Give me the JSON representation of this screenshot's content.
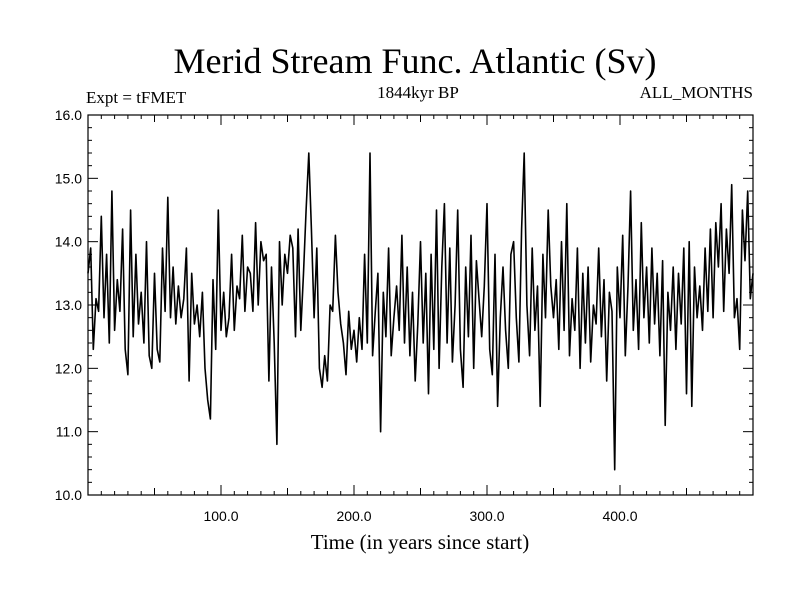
{
  "chart_data": {
    "type": "line",
    "title": "Merid Stream Func. Atlantic (Sv)",
    "subtitle_left": "Expt = tFMET",
    "subtitle_center": "1844kyr BP",
    "subtitle_right": "ALL_MONTHS",
    "xlabel": "Time (in years since start)",
    "ylabel": "",
    "xlim": [
      0,
      500
    ],
    "ylim": [
      10.0,
      16.0
    ],
    "xticks": [
      100,
      200,
      300,
      400
    ],
    "xtick_labels": [
      "100.0",
      "200.0",
      "300.0",
      "400.0"
    ],
    "yticks": [
      10,
      11,
      12,
      13,
      14,
      15,
      16
    ],
    "ytick_labels": [
      "10.0",
      "11.0",
      "12.0",
      "13.0",
      "14.0",
      "15.0",
      "16.0"
    ],
    "grid": false,
    "series": [
      {
        "name": "Merid Stream Func. Atlantic",
        "color": "#000000",
        "points": [
          [
            0,
            13.5
          ],
          [
            2,
            13.9
          ],
          [
            4,
            12.3
          ],
          [
            6,
            13.1
          ],
          [
            8,
            12.9
          ],
          [
            10,
            14.4
          ],
          [
            12,
            12.8
          ],
          [
            14,
            13.8
          ],
          [
            16,
            12.4
          ],
          [
            18,
            14.8
          ],
          [
            20,
            12.6
          ],
          [
            22,
            13.4
          ],
          [
            24,
            12.9
          ],
          [
            26,
            14.2
          ],
          [
            28,
            12.3
          ],
          [
            30,
            11.9
          ],
          [
            32,
            14.5
          ],
          [
            34,
            12.5
          ],
          [
            36,
            13.8
          ],
          [
            38,
            12.7
          ],
          [
            40,
            13.2
          ],
          [
            42,
            12.4
          ],
          [
            44,
            14.0
          ],
          [
            46,
            12.2
          ],
          [
            48,
            12.0
          ],
          [
            50,
            13.5
          ],
          [
            52,
            12.3
          ],
          [
            54,
            12.1
          ],
          [
            56,
            13.9
          ],
          [
            58,
            12.9
          ],
          [
            60,
            14.7
          ],
          [
            62,
            12.8
          ],
          [
            64,
            13.6
          ],
          [
            66,
            12.7
          ],
          [
            68,
            13.3
          ],
          [
            70,
            12.8
          ],
          [
            72,
            13.1
          ],
          [
            74,
            13.9
          ],
          [
            76,
            11.8
          ],
          [
            78,
            13.5
          ],
          [
            80,
            12.7
          ],
          [
            82,
            13.0
          ],
          [
            84,
            12.5
          ],
          [
            86,
            13.2
          ],
          [
            88,
            12.0
          ],
          [
            90,
            11.5
          ],
          [
            92,
            11.2
          ],
          [
            94,
            13.4
          ],
          [
            96,
            12.3
          ],
          [
            98,
            14.5
          ],
          [
            100,
            12.6
          ],
          [
            102,
            13.2
          ],
          [
            104,
            12.5
          ],
          [
            106,
            12.8
          ],
          [
            108,
            13.8
          ],
          [
            110,
            12.6
          ],
          [
            112,
            13.3
          ],
          [
            114,
            13.1
          ],
          [
            116,
            14.1
          ],
          [
            118,
            12.9
          ],
          [
            120,
            13.6
          ],
          [
            122,
            13.5
          ],
          [
            124,
            12.9
          ],
          [
            126,
            14.3
          ],
          [
            128,
            13.0
          ],
          [
            130,
            14.0
          ],
          [
            132,
            13.7
          ],
          [
            134,
            13.8
          ],
          [
            136,
            11.8
          ],
          [
            138,
            13.6
          ],
          [
            140,
            12.4
          ],
          [
            142,
            10.8
          ],
          [
            144,
            14.0
          ],
          [
            146,
            13.0
          ],
          [
            148,
            13.8
          ],
          [
            150,
            13.5
          ],
          [
            152,
            14.1
          ],
          [
            154,
            13.9
          ],
          [
            156,
            12.5
          ],
          [
            158,
            14.2
          ],
          [
            160,
            12.6
          ],
          [
            162,
            13.5
          ],
          [
            164,
            14.5
          ],
          [
            166,
            15.4
          ],
          [
            168,
            14.2
          ],
          [
            170,
            12.8
          ],
          [
            172,
            13.9
          ],
          [
            174,
            12.0
          ],
          [
            176,
            11.7
          ],
          [
            178,
            12.2
          ],
          [
            180,
            11.8
          ],
          [
            182,
            13.0
          ],
          [
            184,
            12.9
          ],
          [
            186,
            14.1
          ],
          [
            188,
            13.2
          ],
          [
            190,
            12.7
          ],
          [
            192,
            12.4
          ],
          [
            194,
            11.9
          ],
          [
            196,
            12.9
          ],
          [
            198,
            12.3
          ],
          [
            200,
            12.6
          ],
          [
            202,
            12.1
          ],
          [
            204,
            12.8
          ],
          [
            206,
            12.3
          ],
          [
            208,
            13.8
          ],
          [
            210,
            12.4
          ],
          [
            212,
            15.4
          ],
          [
            214,
            12.2
          ],
          [
            216,
            12.9
          ],
          [
            218,
            13.5
          ],
          [
            220,
            11.0
          ],
          [
            222,
            13.2
          ],
          [
            224,
            12.5
          ],
          [
            226,
            13.9
          ],
          [
            228,
            12.2
          ],
          [
            230,
            12.8
          ],
          [
            232,
            13.3
          ],
          [
            234,
            12.6
          ],
          [
            236,
            14.1
          ],
          [
            238,
            12.4
          ],
          [
            240,
            13.6
          ],
          [
            242,
            12.2
          ],
          [
            244,
            13.2
          ],
          [
            246,
            11.8
          ],
          [
            248,
            12.7
          ],
          [
            250,
            14.0
          ],
          [
            252,
            12.4
          ],
          [
            254,
            13.5
          ],
          [
            256,
            11.6
          ],
          [
            258,
            13.8
          ],
          [
            260,
            12.3
          ],
          [
            262,
            14.5
          ],
          [
            264,
            12.0
          ],
          [
            266,
            13.6
          ],
          [
            268,
            14.6
          ],
          [
            270,
            12.4
          ],
          [
            272,
            13.9
          ],
          [
            274,
            12.1
          ],
          [
            276,
            13.0
          ],
          [
            278,
            14.5
          ],
          [
            280,
            12.3
          ],
          [
            282,
            11.7
          ],
          [
            284,
            13.6
          ],
          [
            286,
            12.5
          ],
          [
            288,
            14.1
          ],
          [
            290,
            12.0
          ],
          [
            292,
            13.7
          ],
          [
            294,
            13.1
          ],
          [
            296,
            12.5
          ],
          [
            298,
            13.3
          ],
          [
            300,
            14.6
          ],
          [
            302,
            12.3
          ],
          [
            304,
            11.9
          ],
          [
            306,
            13.8
          ],
          [
            308,
            11.4
          ],
          [
            310,
            12.8
          ],
          [
            312,
            13.6
          ],
          [
            314,
            12.6
          ],
          [
            316,
            12.0
          ],
          [
            318,
            13.8
          ],
          [
            320,
            14.0
          ],
          [
            322,
            12.8
          ],
          [
            324,
            12.1
          ],
          [
            326,
            14.2
          ],
          [
            328,
            15.4
          ],
          [
            330,
            13.0
          ],
          [
            332,
            12.2
          ],
          [
            334,
            13.9
          ],
          [
            336,
            12.6
          ],
          [
            338,
            13.3
          ],
          [
            340,
            11.4
          ],
          [
            342,
            13.8
          ],
          [
            344,
            12.8
          ],
          [
            346,
            14.5
          ],
          [
            348,
            13.3
          ],
          [
            350,
            12.8
          ],
          [
            352,
            13.4
          ],
          [
            354,
            12.3
          ],
          [
            356,
            14.0
          ],
          [
            358,
            12.6
          ],
          [
            360,
            14.6
          ],
          [
            362,
            12.2
          ],
          [
            364,
            13.1
          ],
          [
            366,
            12.6
          ],
          [
            368,
            13.9
          ],
          [
            370,
            12.0
          ],
          [
            372,
            13.5
          ],
          [
            374,
            12.4
          ],
          [
            376,
            13.6
          ],
          [
            378,
            12.1
          ],
          [
            380,
            13.0
          ],
          [
            382,
            12.7
          ],
          [
            384,
            13.9
          ],
          [
            386,
            12.5
          ],
          [
            388,
            13.4
          ],
          [
            390,
            11.8
          ],
          [
            392,
            13.2
          ],
          [
            394,
            12.9
          ],
          [
            396,
            10.4
          ],
          [
            398,
            13.6
          ],
          [
            400,
            12.8
          ],
          [
            402,
            14.1
          ],
          [
            404,
            12.2
          ],
          [
            406,
            13.3
          ],
          [
            408,
            14.8
          ],
          [
            410,
            12.6
          ],
          [
            412,
            13.4
          ],
          [
            414,
            12.3
          ],
          [
            416,
            14.3
          ],
          [
            418,
            12.8
          ],
          [
            420,
            13.6
          ],
          [
            422,
            12.4
          ],
          [
            424,
            13.9
          ],
          [
            426,
            12.7
          ],
          [
            428,
            13.5
          ],
          [
            430,
            12.2
          ],
          [
            432,
            13.7
          ],
          [
            434,
            11.1
          ],
          [
            436,
            13.2
          ],
          [
            438,
            12.6
          ],
          [
            440,
            13.6
          ],
          [
            442,
            12.3
          ],
          [
            444,
            13.5
          ],
          [
            446,
            12.7
          ],
          [
            448,
            13.9
          ],
          [
            450,
            11.6
          ],
          [
            452,
            14.0
          ],
          [
            454,
            11.4
          ],
          [
            456,
            13.6
          ],
          [
            458,
            12.8
          ],
          [
            460,
            13.3
          ],
          [
            462,
            12.6
          ],
          [
            464,
            13.9
          ],
          [
            466,
            12.9
          ],
          [
            468,
            14.2
          ],
          [
            470,
            12.8
          ],
          [
            472,
            14.3
          ],
          [
            474,
            13.6
          ],
          [
            476,
            14.6
          ],
          [
            478,
            12.9
          ],
          [
            480,
            14.2
          ],
          [
            482,
            13.5
          ],
          [
            484,
            14.9
          ],
          [
            486,
            12.8
          ],
          [
            488,
            13.1
          ],
          [
            490,
            12.3
          ],
          [
            492,
            14.5
          ],
          [
            494,
            13.7
          ],
          [
            496,
            14.8
          ],
          [
            498,
            13.1
          ],
          [
            500,
            13.5
          ]
        ]
      }
    ]
  }
}
